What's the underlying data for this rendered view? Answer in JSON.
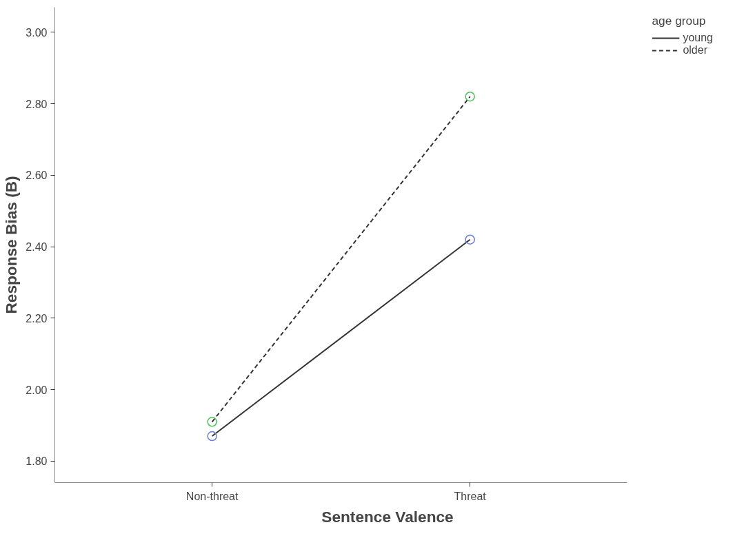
{
  "chart_data": {
    "type": "line",
    "xlabel": "Sentence Valence",
    "ylabel": "Response Bias (B)",
    "legend_title": "age group",
    "categories": [
      "Non-threat",
      "Threat"
    ],
    "series": [
      {
        "name": "young",
        "color": "#333333",
        "colors": [
          "#6a7fd4",
          "#6a7fd4"
        ],
        "line_style": "solid",
        "values": [
          1.87,
          2.42
        ]
      },
      {
        "name": "older",
        "color": "#333333",
        "colors": [
          "#4cc25a",
          "#4cc25a"
        ],
        "line_style": "dashed",
        "values": [
          1.91,
          2.82
        ]
      }
    ],
    "marker": "circle",
    "grid": false,
    "legend": "top right",
    "ylim": [
      1.74,
      3.07
    ],
    "yticks": [
      {
        "value": 1.8,
        "label": "1.80"
      },
      {
        "value": 2.0,
        "label": "2.00"
      },
      {
        "value": 2.2,
        "label": "2.20"
      },
      {
        "value": 2.4,
        "label": "2.40"
      },
      {
        "value": 2.6,
        "label": "2.60"
      },
      {
        "value": 2.8,
        "label": "2.80"
      },
      {
        "value": 3.0,
        "label": "3.00"
      }
    ]
  }
}
